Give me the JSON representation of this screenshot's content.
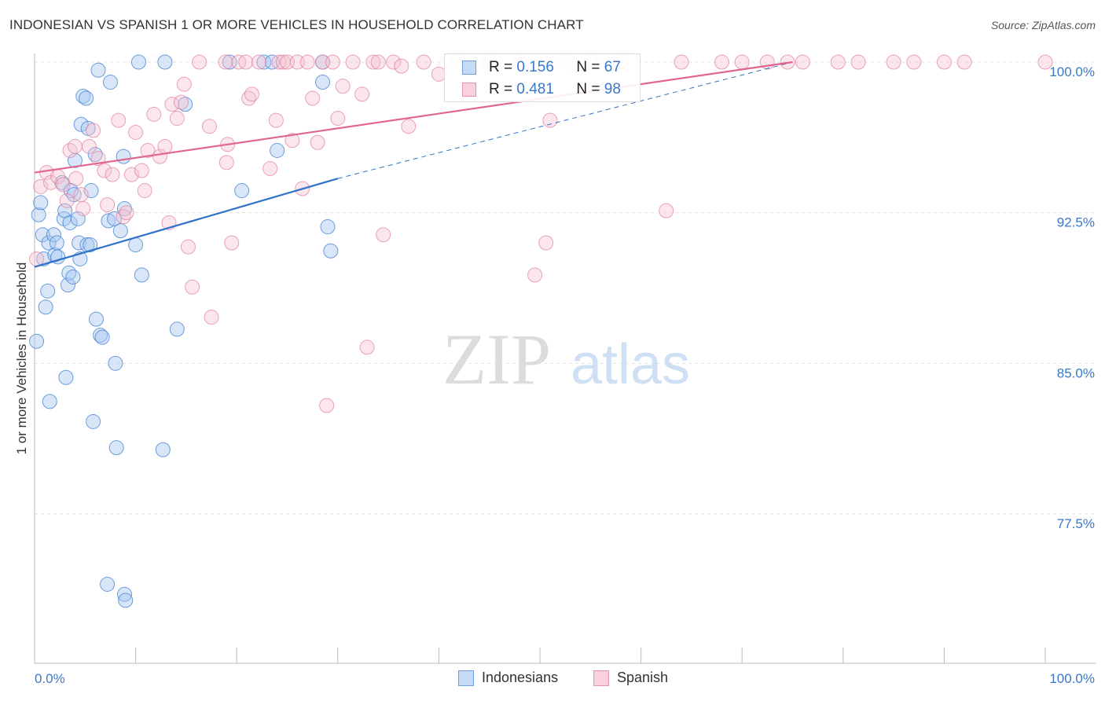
{
  "title": "INDONESIAN VS SPANISH 1 OR MORE VEHICLES IN HOUSEHOLD CORRELATION CHART",
  "source": "Source: ZipAtlas.com",
  "watermark": {
    "zip": "ZIP",
    "atlas": "atlas"
  },
  "legend": {
    "rows": [
      {
        "r_label": "R = ",
        "r_value": "0.156",
        "n_label": "N = ",
        "n_value": "67"
      },
      {
        "r_label": "R = ",
        "r_value": "0.481",
        "n_label": "N = ",
        "n_value": "98"
      }
    ]
  },
  "bottom_legend": {
    "series1": "Indonesians",
    "series2": "Spanish"
  },
  "colors": {
    "blue": "#a9c8ef",
    "blue_edge": "#4a86d6",
    "blue_line": "#2f72c8",
    "pink": "#f6c0d0",
    "pink_edge": "#e07ea0",
    "pink_line": "#e06690",
    "tick_text": "#3a78c9",
    "grid": "#e2e2e2"
  },
  "chart_data": {
    "type": "scatter",
    "title": "INDONESIAN VS SPANISH 1 OR MORE VEHICLES IN HOUSEHOLD CORRELATION CHART",
    "xlabel": "",
    "ylabel": "1 or more Vehicles in Household",
    "xlim": [
      0,
      100
    ],
    "ylim": [
      71,
      100.5
    ],
    "x_tick_labels": [
      "0.0%",
      "100.0%"
    ],
    "y_ticks": [
      77.5,
      85.0,
      92.5,
      100.0
    ],
    "y_tick_labels": [
      "77.5%",
      "85.0%",
      "92.5%",
      "100.0%"
    ],
    "grid": true,
    "series": [
      {
        "name": "Indonesians",
        "r": 0.156,
        "n": 67,
        "trend": {
          "x": [
            0,
            30
          ],
          "y": [
            89.8,
            94.2
          ],
          "dash_to": [
            75,
            100
          ]
        },
        "points": [
          [
            0.2,
            86.1
          ],
          [
            0.4,
            92.4
          ],
          [
            0.6,
            93.0
          ],
          [
            0.8,
            91.4
          ],
          [
            0.9,
            90.2
          ],
          [
            1.1,
            87.8
          ],
          [
            1.3,
            88.6
          ],
          [
            1.4,
            91.0
          ],
          [
            1.5,
            83.1
          ],
          [
            1.9,
            91.4
          ],
          [
            2.0,
            90.4
          ],
          [
            2.2,
            91.0
          ],
          [
            2.3,
            90.3
          ],
          [
            2.7,
            94.0
          ],
          [
            2.9,
            92.2
          ],
          [
            3.0,
            92.6
          ],
          [
            3.1,
            84.3
          ],
          [
            3.3,
            88.9
          ],
          [
            3.4,
            89.5
          ],
          [
            3.5,
            92.0
          ],
          [
            3.6,
            93.6
          ],
          [
            3.8,
            89.3
          ],
          [
            3.9,
            93.4
          ],
          [
            4.0,
            95.1
          ],
          [
            4.3,
            92.2
          ],
          [
            4.4,
            91.0
          ],
          [
            4.5,
            90.2
          ],
          [
            4.6,
            96.9
          ],
          [
            4.8,
            98.3
          ],
          [
            5.1,
            98.2
          ],
          [
            5.2,
            90.9
          ],
          [
            5.3,
            96.7
          ],
          [
            5.5,
            90.9
          ],
          [
            5.6,
            93.6
          ],
          [
            5.8,
            82.1
          ],
          [
            6.0,
            95.4
          ],
          [
            6.1,
            87.2
          ],
          [
            6.3,
            99.6
          ],
          [
            6.5,
            86.4
          ],
          [
            6.7,
            86.3
          ],
          [
            7.2,
            74.0
          ],
          [
            7.3,
            92.1
          ],
          [
            7.5,
            99.0
          ],
          [
            7.9,
            92.2
          ],
          [
            8.0,
            85.0
          ],
          [
            8.1,
            80.8
          ],
          [
            8.5,
            91.6
          ],
          [
            8.8,
            95.3
          ],
          [
            8.9,
            73.5
          ],
          [
            9.0,
            73.2
          ],
          [
            8.9,
            92.7
          ],
          [
            10.0,
            90.9
          ],
          [
            10.3,
            100.0
          ],
          [
            10.6,
            89.4
          ],
          [
            12.7,
            80.7
          ],
          [
            12.9,
            100.0
          ],
          [
            14.1,
            86.7
          ],
          [
            14.9,
            97.9
          ],
          [
            19.3,
            100.0
          ],
          [
            20.5,
            93.6
          ],
          [
            22.7,
            100.0
          ],
          [
            29.0,
            91.8
          ],
          [
            28.5,
            100.0
          ],
          [
            24.0,
            95.6
          ],
          [
            23.5,
            100.0
          ],
          [
            28.5,
            99.0
          ],
          [
            29.3,
            90.6
          ]
        ]
      },
      {
        "name": "Spanish",
        "r": 0.481,
        "n": 98,
        "trend": {
          "x": [
            0,
            75
          ],
          "y": [
            94.5,
            100.0
          ]
        },
        "points": [
          [
            0.2,
            90.2
          ],
          [
            0.6,
            93.8
          ],
          [
            1.2,
            94.5
          ],
          [
            1.6,
            94.0
          ],
          [
            2.3,
            94.3
          ],
          [
            2.8,
            93.9
          ],
          [
            3.2,
            93.1
          ],
          [
            3.5,
            95.6
          ],
          [
            4.0,
            95.8
          ],
          [
            4.1,
            94.2
          ],
          [
            4.6,
            93.4
          ],
          [
            4.8,
            92.7
          ],
          [
            5.4,
            95.8
          ],
          [
            5.8,
            96.6
          ],
          [
            6.3,
            95.2
          ],
          [
            6.9,
            94.6
          ],
          [
            7.2,
            92.9
          ],
          [
            7.7,
            94.4
          ],
          [
            8.3,
            97.1
          ],
          [
            8.8,
            92.3
          ],
          [
            9.1,
            92.5
          ],
          [
            9.6,
            94.4
          ],
          [
            10.0,
            96.5
          ],
          [
            10.6,
            94.6
          ],
          [
            10.9,
            93.6
          ],
          [
            11.2,
            95.6
          ],
          [
            11.8,
            97.4
          ],
          [
            12.4,
            95.3
          ],
          [
            12.9,
            95.8
          ],
          [
            13.3,
            92.0
          ],
          [
            13.6,
            97.9
          ],
          [
            14.1,
            97.2
          ],
          [
            14.5,
            98.0
          ],
          [
            14.8,
            98.9
          ],
          [
            15.2,
            90.8
          ],
          [
            15.6,
            88.8
          ],
          [
            16.3,
            100.0
          ],
          [
            17.3,
            96.8
          ],
          [
            17.5,
            87.3
          ],
          [
            18.9,
            100.0
          ],
          [
            19.0,
            95.0
          ],
          [
            19.1,
            95.9
          ],
          [
            19.5,
            91.0
          ],
          [
            20.2,
            100.0
          ],
          [
            20.9,
            100.0
          ],
          [
            21.2,
            98.2
          ],
          [
            21.5,
            98.4
          ],
          [
            22.2,
            100.0
          ],
          [
            23.3,
            94.7
          ],
          [
            23.9,
            97.1
          ],
          [
            24.2,
            100.0
          ],
          [
            24.6,
            100.0
          ],
          [
            25.0,
            100.0
          ],
          [
            25.5,
            96.1
          ],
          [
            26.0,
            100.0
          ],
          [
            26.5,
            93.7
          ],
          [
            27.0,
            100.0
          ],
          [
            27.5,
            98.2
          ],
          [
            28.0,
            96.0
          ],
          [
            28.5,
            100.0
          ],
          [
            28.9,
            82.9
          ],
          [
            29.5,
            100.0
          ],
          [
            30.0,
            97.2
          ],
          [
            30.5,
            98.8
          ],
          [
            31.5,
            100.0
          ],
          [
            32.4,
            98.4
          ],
          [
            32.9,
            85.8
          ],
          [
            33.5,
            100.0
          ],
          [
            34.0,
            100.0
          ],
          [
            34.5,
            91.4
          ],
          [
            35.5,
            100.0
          ],
          [
            36.3,
            99.8
          ],
          [
            37.0,
            96.8
          ],
          [
            38.5,
            100.0
          ],
          [
            40.0,
            99.4
          ],
          [
            42.0,
            100.0
          ],
          [
            45.0,
            100.0
          ],
          [
            48.0,
            100.0
          ],
          [
            49.5,
            89.4
          ],
          [
            50.6,
            91.0
          ],
          [
            51.0,
            97.1
          ],
          [
            52.6,
            100.0
          ],
          [
            55.0,
            100.0
          ],
          [
            58.0,
            100.0
          ],
          [
            62.5,
            92.6
          ],
          [
            64.0,
            100.0
          ],
          [
            68.0,
            100.0
          ],
          [
            70.0,
            100.0
          ],
          [
            72.5,
            100.0
          ],
          [
            76.0,
            100.0
          ],
          [
            79.5,
            100.0
          ],
          [
            81.5,
            100.0
          ],
          [
            85.0,
            100.0
          ],
          [
            87.0,
            100.0
          ],
          [
            90.0,
            100.0
          ],
          [
            92.0,
            100.0
          ],
          [
            100.0,
            100.0
          ],
          [
            74.5,
            100.0
          ]
        ]
      }
    ]
  }
}
